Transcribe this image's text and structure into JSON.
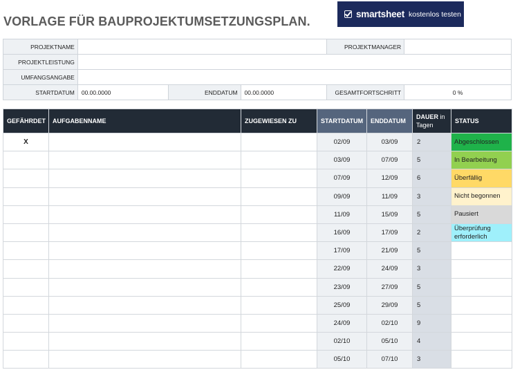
{
  "title": "VORLAGE FÜR BAUPROJEKTUMSETZUNGSPLAN.",
  "brand": {
    "name": "smartsheet",
    "cta": "kostenlos testen",
    "icon": "checkbox-icon",
    "color": "#1c2a5c"
  },
  "info": {
    "projektname_label": "PROJEKTNAME",
    "projektname_value": "",
    "projektmanager_label": "PROJEKTMANAGER",
    "projektmanager_value": "",
    "projektleistung_label": "PROJEKTLEISTUNG",
    "projektleistung_value": "",
    "umfangsangabe_label": "UMFANGSANGABE",
    "umfangsangabe_value": "",
    "startdatum_label": "STARTDATUM",
    "startdatum_value": "00.00.0000",
    "enddatum_label": "ENDDATUM",
    "enddatum_value": "00.00.0000",
    "gesamtfortschritt_label": "GESAMTFORTSCHRITT",
    "gesamtfortschritt_value": "0 %"
  },
  "table": {
    "headers": {
      "risk": "GEFÄHRDET",
      "task": "AUFGABENNAME",
      "assignee": "ZUGEWIESEN ZU",
      "start": "STARTDATUM",
      "end": "ENDDATUM",
      "duration": "DAUER",
      "duration_sub": "in Tagen",
      "status": "STATUS"
    },
    "rows": [
      {
        "risk": "X",
        "task": "",
        "assignee": "",
        "start": "02/09",
        "end": "03/09",
        "duration": "2",
        "status": "Abgeschlossen",
        "status_color": "#1fb24a"
      },
      {
        "risk": "",
        "task": "",
        "assignee": "",
        "start": "03/09",
        "end": "07/09",
        "duration": "5",
        "status": "In Bearbeitung",
        "status_color": "#92d050"
      },
      {
        "risk": "",
        "task": "",
        "assignee": "",
        "start": "07/09",
        "end": "12/09",
        "duration": "6",
        "status": "Überfällig",
        "status_color": "#ffd966"
      },
      {
        "risk": "",
        "task": "",
        "assignee": "",
        "start": "09/09",
        "end": "11/09",
        "duration": "3",
        "status": "Nicht begonnen",
        "status_color": "#fff2cc"
      },
      {
        "risk": "",
        "task": "",
        "assignee": "",
        "start": "11/09",
        "end": "15/09",
        "duration": "5",
        "status": "Pausiert",
        "status_color": "#d9d9d9"
      },
      {
        "risk": "",
        "task": "",
        "assignee": "",
        "start": "16/09",
        "end": "17/09",
        "duration": "2",
        "status": "Überprüfung erforderlich",
        "status_color": "#9ff0fb"
      },
      {
        "risk": "",
        "task": "",
        "assignee": "",
        "start": "17/09",
        "end": "21/09",
        "duration": "5",
        "status": "",
        "status_color": ""
      },
      {
        "risk": "",
        "task": "",
        "assignee": "",
        "start": "22/09",
        "end": "24/09",
        "duration": "3",
        "status": "",
        "status_color": ""
      },
      {
        "risk": "",
        "task": "",
        "assignee": "",
        "start": "23/09",
        "end": "27/09",
        "duration": "5",
        "status": "",
        "status_color": ""
      },
      {
        "risk": "",
        "task": "",
        "assignee": "",
        "start": "25/09",
        "end": "29/09",
        "duration": "5",
        "status": "",
        "status_color": ""
      },
      {
        "risk": "",
        "task": "",
        "assignee": "",
        "start": "24/09",
        "end": "02/10",
        "duration": "9",
        "status": "",
        "status_color": ""
      },
      {
        "risk": "",
        "task": "",
        "assignee": "",
        "start": "02/10",
        "end": "05/10",
        "duration": "4",
        "status": "",
        "status_color": ""
      },
      {
        "risk": "",
        "task": "",
        "assignee": "",
        "start": "05/10",
        "end": "07/10",
        "duration": "3",
        "status": "",
        "status_color": ""
      }
    ]
  }
}
